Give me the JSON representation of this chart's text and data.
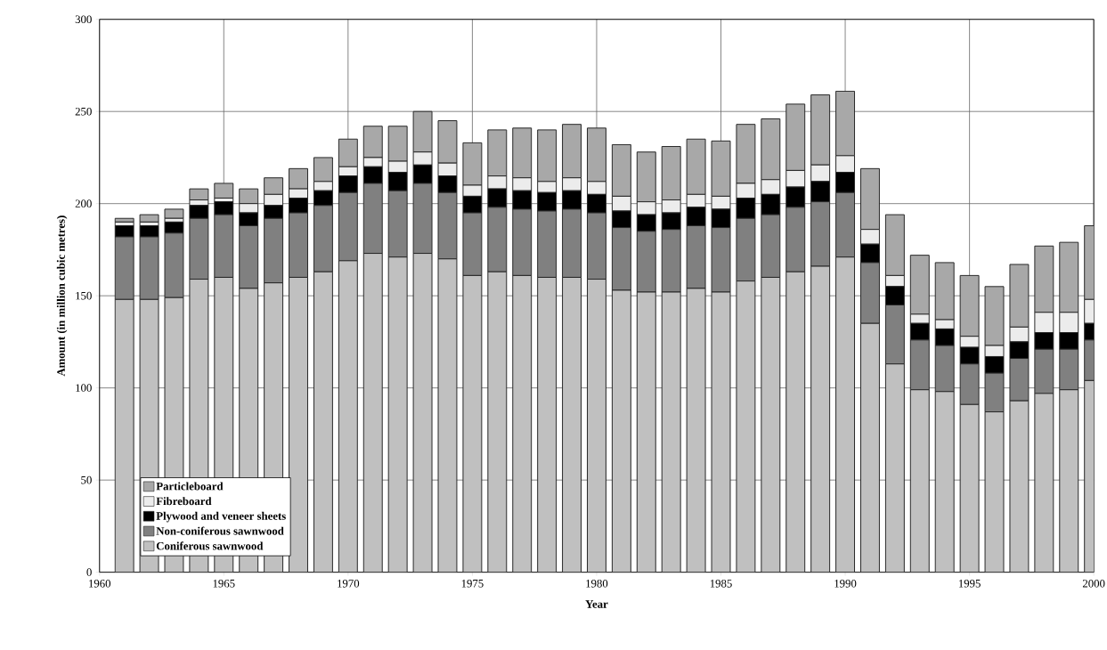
{
  "chart_data": {
    "type": "bar",
    "stacked": true,
    "xlabel": "Year",
    "ylabel": "Amount (in million cubic metres)",
    "x": [
      1961,
      1962,
      1963,
      1964,
      1965,
      1966,
      1967,
      1968,
      1969,
      1970,
      1971,
      1972,
      1973,
      1974,
      1975,
      1976,
      1977,
      1978,
      1979,
      1980,
      1981,
      1982,
      1983,
      1984,
      1985,
      1986,
      1987,
      1988,
      1989,
      1990,
      1991,
      1992,
      1993,
      1994,
      1995,
      1996,
      1997,
      1998,
      1999,
      2000
    ],
    "xlim": [
      1960,
      2000
    ],
    "xticks": [
      1960,
      1965,
      1970,
      1975,
      1980,
      1985,
      1990,
      1995,
      2000
    ],
    "ylim": [
      0,
      300
    ],
    "yticks": [
      0,
      50,
      100,
      150,
      200,
      250,
      300
    ],
    "grid": true,
    "legend": "bottom left",
    "series": [
      {
        "name": "Coniferous sawnwood",
        "color": "#c0c0c0",
        "values": [
          148,
          148,
          149,
          159,
          160,
          154,
          157,
          160,
          163,
          169,
          173,
          171,
          173,
          170,
          161,
          163,
          161,
          160,
          160,
          159,
          153,
          152,
          152,
          154,
          152,
          158,
          160,
          163,
          166,
          171,
          135,
          113,
          99,
          98,
          91,
          87,
          93,
          97,
          99,
          104
        ]
      },
      {
        "name": "Non-coniferous sawnwood",
        "color": "#808080",
        "values": [
          34,
          34,
          35,
          33,
          34,
          34,
          35,
          35,
          36,
          37,
          38,
          36,
          38,
          36,
          34,
          35,
          36,
          36,
          37,
          36,
          34,
          33,
          34,
          34,
          35,
          34,
          34,
          35,
          35,
          35,
          33,
          32,
          27,
          25,
          22,
          21,
          23,
          24,
          22,
          22
        ]
      },
      {
        "name": "Plywood and veneer sheets",
        "color": "#000000",
        "values": [
          6,
          6,
          6,
          7,
          7,
          7,
          7,
          8,
          8,
          9,
          9,
          10,
          10,
          9,
          9,
          10,
          10,
          10,
          10,
          10,
          9,
          9,
          9,
          10,
          10,
          11,
          11,
          11,
          11,
          11,
          10,
          10,
          9,
          9,
          9,
          9,
          9,
          9,
          9,
          9
        ]
      },
      {
        "name": "Fibreboard",
        "color": "#ececec",
        "values": [
          2,
          2,
          2,
          3,
          2,
          5,
          6,
          5,
          5,
          5,
          5,
          6,
          7,
          7,
          6,
          7,
          7,
          6,
          7,
          7,
          8,
          7,
          7,
          7,
          7,
          8,
          8,
          9,
          9,
          9,
          8,
          6,
          5,
          5,
          6,
          6,
          8,
          11,
          11,
          13
        ]
      },
      {
        "name": "Particleboard",
        "color": "#a8a8a8",
        "values": [
          2,
          4,
          5,
          6,
          8,
          8,
          9,
          11,
          13,
          15,
          17,
          19,
          22,
          23,
          23,
          25,
          27,
          28,
          29,
          29,
          28,
          27,
          29,
          30,
          30,
          32,
          33,
          36,
          38,
          35,
          33,
          33,
          32,
          31,
          33,
          32,
          34,
          36,
          38,
          40
        ]
      }
    ]
  }
}
